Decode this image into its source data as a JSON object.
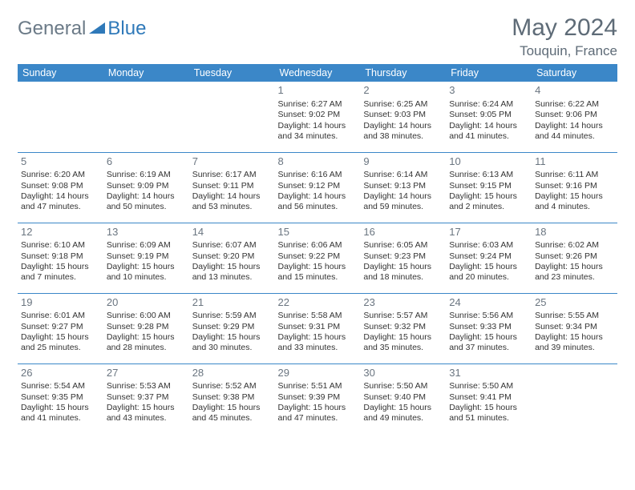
{
  "brand": {
    "part1": "General",
    "part2": "Blue"
  },
  "title": "May 2024",
  "location": "Touquin, France",
  "colors": {
    "header_bg": "#3b87c8",
    "header_text": "#ffffff",
    "title_text": "#5e6b77",
    "brand_gray": "#6b7a87",
    "brand_blue": "#2f79b9",
    "row_border": "#3b87c8",
    "daynum": "#6a7580",
    "body_text": "#333333",
    "page_bg": "#ffffff"
  },
  "weekdays": [
    "Sunday",
    "Monday",
    "Tuesday",
    "Wednesday",
    "Thursday",
    "Friday",
    "Saturday"
  ],
  "weeks": [
    [
      {
        "n": "",
        "sr": "",
        "ss": "",
        "dl": ""
      },
      {
        "n": "",
        "sr": "",
        "ss": "",
        "dl": ""
      },
      {
        "n": "",
        "sr": "",
        "ss": "",
        "dl": ""
      },
      {
        "n": "1",
        "sr": "6:27 AM",
        "ss": "9:02 PM",
        "dl": "14 hours and 34 minutes."
      },
      {
        "n": "2",
        "sr": "6:25 AM",
        "ss": "9:03 PM",
        "dl": "14 hours and 38 minutes."
      },
      {
        "n": "3",
        "sr": "6:24 AM",
        "ss": "9:05 PM",
        "dl": "14 hours and 41 minutes."
      },
      {
        "n": "4",
        "sr": "6:22 AM",
        "ss": "9:06 PM",
        "dl": "14 hours and 44 minutes."
      }
    ],
    [
      {
        "n": "5",
        "sr": "6:20 AM",
        "ss": "9:08 PM",
        "dl": "14 hours and 47 minutes."
      },
      {
        "n": "6",
        "sr": "6:19 AM",
        "ss": "9:09 PM",
        "dl": "14 hours and 50 minutes."
      },
      {
        "n": "7",
        "sr": "6:17 AM",
        "ss": "9:11 PM",
        "dl": "14 hours and 53 minutes."
      },
      {
        "n": "8",
        "sr": "6:16 AM",
        "ss": "9:12 PM",
        "dl": "14 hours and 56 minutes."
      },
      {
        "n": "9",
        "sr": "6:14 AM",
        "ss": "9:13 PM",
        "dl": "14 hours and 59 minutes."
      },
      {
        "n": "10",
        "sr": "6:13 AM",
        "ss": "9:15 PM",
        "dl": "15 hours and 2 minutes."
      },
      {
        "n": "11",
        "sr": "6:11 AM",
        "ss": "9:16 PM",
        "dl": "15 hours and 4 minutes."
      }
    ],
    [
      {
        "n": "12",
        "sr": "6:10 AM",
        "ss": "9:18 PM",
        "dl": "15 hours and 7 minutes."
      },
      {
        "n": "13",
        "sr": "6:09 AM",
        "ss": "9:19 PM",
        "dl": "15 hours and 10 minutes."
      },
      {
        "n": "14",
        "sr": "6:07 AM",
        "ss": "9:20 PM",
        "dl": "15 hours and 13 minutes."
      },
      {
        "n": "15",
        "sr": "6:06 AM",
        "ss": "9:22 PM",
        "dl": "15 hours and 15 minutes."
      },
      {
        "n": "16",
        "sr": "6:05 AM",
        "ss": "9:23 PM",
        "dl": "15 hours and 18 minutes."
      },
      {
        "n": "17",
        "sr": "6:03 AM",
        "ss": "9:24 PM",
        "dl": "15 hours and 20 minutes."
      },
      {
        "n": "18",
        "sr": "6:02 AM",
        "ss": "9:26 PM",
        "dl": "15 hours and 23 minutes."
      }
    ],
    [
      {
        "n": "19",
        "sr": "6:01 AM",
        "ss": "9:27 PM",
        "dl": "15 hours and 25 minutes."
      },
      {
        "n": "20",
        "sr": "6:00 AM",
        "ss": "9:28 PM",
        "dl": "15 hours and 28 minutes."
      },
      {
        "n": "21",
        "sr": "5:59 AM",
        "ss": "9:29 PM",
        "dl": "15 hours and 30 minutes."
      },
      {
        "n": "22",
        "sr": "5:58 AM",
        "ss": "9:31 PM",
        "dl": "15 hours and 33 minutes."
      },
      {
        "n": "23",
        "sr": "5:57 AM",
        "ss": "9:32 PM",
        "dl": "15 hours and 35 minutes."
      },
      {
        "n": "24",
        "sr": "5:56 AM",
        "ss": "9:33 PM",
        "dl": "15 hours and 37 minutes."
      },
      {
        "n": "25",
        "sr": "5:55 AM",
        "ss": "9:34 PM",
        "dl": "15 hours and 39 minutes."
      }
    ],
    [
      {
        "n": "26",
        "sr": "5:54 AM",
        "ss": "9:35 PM",
        "dl": "15 hours and 41 minutes."
      },
      {
        "n": "27",
        "sr": "5:53 AM",
        "ss": "9:37 PM",
        "dl": "15 hours and 43 minutes."
      },
      {
        "n": "28",
        "sr": "5:52 AM",
        "ss": "9:38 PM",
        "dl": "15 hours and 45 minutes."
      },
      {
        "n": "29",
        "sr": "5:51 AM",
        "ss": "9:39 PM",
        "dl": "15 hours and 47 minutes."
      },
      {
        "n": "30",
        "sr": "5:50 AM",
        "ss": "9:40 PM",
        "dl": "15 hours and 49 minutes."
      },
      {
        "n": "31",
        "sr": "5:50 AM",
        "ss": "9:41 PM",
        "dl": "15 hours and 51 minutes."
      },
      {
        "n": "",
        "sr": "",
        "ss": "",
        "dl": ""
      }
    ]
  ],
  "labels": {
    "sunrise": "Sunrise:",
    "sunset": "Sunset:",
    "daylight": "Daylight:"
  }
}
